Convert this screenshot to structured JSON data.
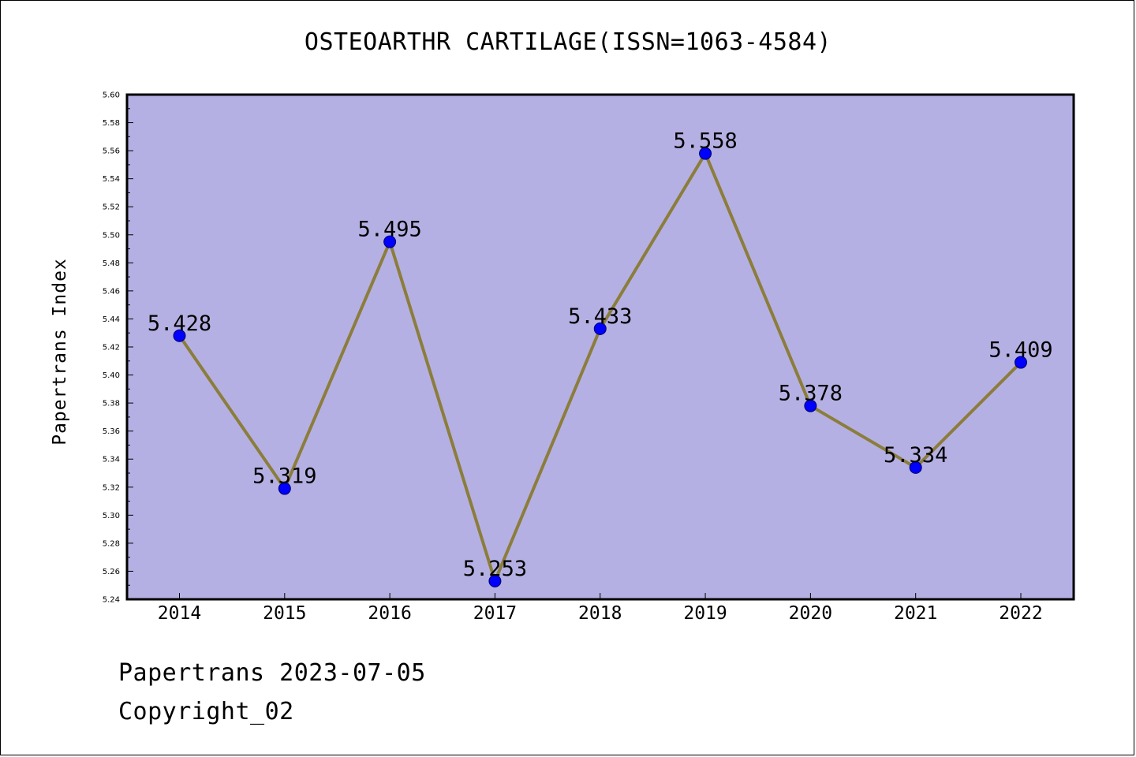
{
  "title": "OSTEOARTHR CARTILAGE(ISSN=1063-4584)",
  "ylabel": "Papertrans Index",
  "footer": {
    "line1": "Papertrans 2023-07-05",
    "line2": "Copyright_02"
  },
  "colors": {
    "plot_background": "#b5b0e3",
    "line": "#8b7d3b",
    "marker": "#0000ff",
    "marker_edge": "#000066"
  },
  "chart_data": {
    "type": "line",
    "title": "OSTEOARTHR CARTILAGE(ISSN=1063-4584)",
    "xlabel": "",
    "ylabel": "Papertrans Index",
    "categories": [
      "2014",
      "2015",
      "2016",
      "2017",
      "2018",
      "2019",
      "2020",
      "2021",
      "2022"
    ],
    "values": [
      5.428,
      5.319,
      5.495,
      5.253,
      5.433,
      5.558,
      5.378,
      5.334,
      5.409
    ],
    "data_labels": [
      "5.428",
      "5.319",
      "5.495",
      "5.253",
      "5.433",
      "5.558",
      "5.378",
      "5.334",
      "5.409"
    ],
    "ylim": [
      5.24,
      5.6
    ],
    "y_ticks": [
      "5.24",
      "5.26",
      "5.28",
      "5.30",
      "5.32",
      "5.34",
      "5.36",
      "5.38",
      "5.40",
      "5.42",
      "5.44",
      "5.46",
      "5.48",
      "5.50",
      "5.52",
      "5.54",
      "5.56",
      "5.58",
      "5.60"
    ],
    "grid": false,
    "legend": "none"
  }
}
